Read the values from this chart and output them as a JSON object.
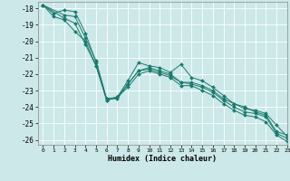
{
  "title": "",
  "xlabel": "Humidex (Indice chaleur)",
  "ylabel": "",
  "bg_color": "#cce8e8",
  "grid_color": "#ffffff",
  "line_color": "#1a7a6e",
  "marker_color": "#1a7a6e",
  "xlim": [
    -0.5,
    23
  ],
  "ylim": [
    -26.3,
    -17.6
  ],
  "yticks": [
    -18,
    -19,
    -20,
    -21,
    -22,
    -23,
    -24,
    -25,
    -26
  ],
  "xticks": [
    0,
    1,
    2,
    3,
    4,
    5,
    6,
    7,
    8,
    9,
    10,
    11,
    12,
    13,
    14,
    15,
    16,
    17,
    18,
    19,
    20,
    21,
    22,
    23
  ],
  "lines": [
    {
      "x": [
        0,
        1,
        2,
        3,
        4,
        5,
        6,
        7,
        8,
        9,
        10,
        11,
        12,
        13,
        14,
        15,
        16,
        17,
        18,
        19,
        20,
        21,
        22,
        23
      ],
      "y": [
        -17.8,
        -18.3,
        -18.1,
        -18.2,
        -19.5,
        -21.3,
        -23.6,
        -23.4,
        -22.4,
        -21.3,
        -21.5,
        -21.6,
        -21.9,
        -21.4,
        -22.2,
        -22.4,
        -22.8,
        -23.3,
        -23.8,
        -24.1,
        -24.2,
        -24.4,
        -25.1,
        -25.8
      ]
    },
    {
      "x": [
        0,
        1,
        2,
        3,
        4,
        5,
        6,
        7,
        8,
        9,
        10,
        11,
        12,
        13,
        14,
        15,
        16,
        17,
        18,
        19,
        20,
        21,
        22,
        23
      ],
      "y": [
        -17.8,
        -18.5,
        -18.7,
        -19.4,
        -20.0,
        -21.5,
        -23.5,
        -23.5,
        -22.6,
        -21.8,
        -21.6,
        -21.8,
        -22.0,
        -22.5,
        -22.5,
        -22.7,
        -23.0,
        -23.5,
        -23.8,
        -24.0,
        -24.3,
        -24.5,
        -25.5,
        -25.7
      ]
    },
    {
      "x": [
        0,
        2,
        3,
        4,
        5,
        6,
        7,
        8,
        9,
        10,
        11,
        12,
        13,
        14,
        15,
        16,
        17,
        18,
        19,
        20,
        21,
        22,
        23
      ],
      "y": [
        -17.8,
        -18.4,
        -18.5,
        -19.8,
        -21.2,
        -23.5,
        -23.4,
        -22.6,
        -21.8,
        -21.7,
        -21.9,
        -22.1,
        -22.5,
        -22.6,
        -22.8,
        -23.1,
        -23.6,
        -24.0,
        -24.3,
        -24.4,
        -24.6,
        -25.6,
        -25.9
      ]
    },
    {
      "x": [
        0,
        2,
        3,
        4,
        5,
        6,
        7,
        8,
        9,
        10,
        11,
        12,
        13,
        14,
        15,
        16,
        17,
        18,
        19,
        20,
        21,
        22,
        23
      ],
      "y": [
        -17.8,
        -18.6,
        -18.9,
        -20.2,
        -21.5,
        -23.6,
        -23.4,
        -22.8,
        -22.0,
        -21.8,
        -22.0,
        -22.2,
        -22.7,
        -22.7,
        -23.0,
        -23.3,
        -23.8,
        -24.2,
        -24.5,
        -24.6,
        -24.9,
        -25.7,
        -26.1
      ]
    }
  ]
}
